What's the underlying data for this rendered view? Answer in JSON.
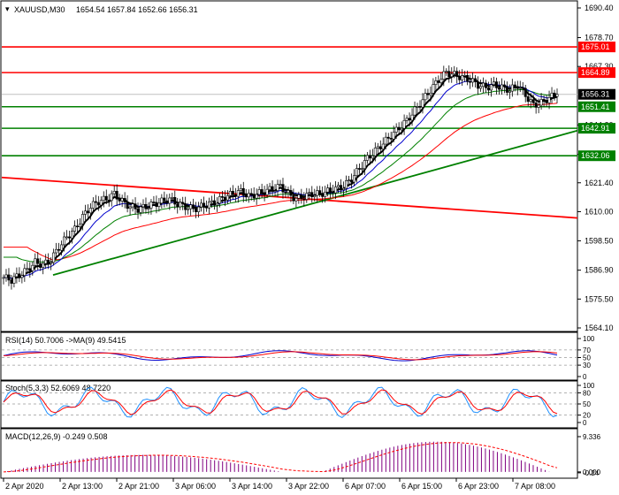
{
  "header": {
    "symbol": "XAUUSD,M30",
    "ohlc": "1654.54 1657.84 1652.66 1656.31"
  },
  "price_axis": {
    "ticks": [
      "1690.40",
      "1678.70",
      "1667.30",
      "1644.20",
      "1632.60",
      "1621.40",
      "1610.00",
      "1598.50",
      "1586.90",
      "1575.50",
      "1564.10"
    ]
  },
  "levels": [
    {
      "label": "1675.01",
      "value": 1675.01,
      "color": "#ff0000"
    },
    {
      "label": "1664.89",
      "value": 1664.89,
      "color": "#ff0000"
    },
    {
      "label": "1651.41",
      "value": 1651.41,
      "color": "#008000"
    },
    {
      "label": "1642.91",
      "value": 1642.91,
      "color": "#008000"
    },
    {
      "label": "1632.06",
      "value": 1632.06,
      "color": "#008000"
    }
  ],
  "current_price": {
    "label": "1656.31",
    "value": 1656.31
  },
  "time_axis": {
    "labels": [
      "2 Apr 2020",
      "2 Apr 13:00",
      "2 Apr 21:00",
      "3 Apr 06:00",
      "3 Apr 14:00",
      "3 Apr 22:00",
      "6 Apr 07:00",
      "6 Apr 15:00",
      "6 Apr 23:00",
      "7 Apr 08:00"
    ]
  },
  "rsi": {
    "title": "RSI(14) 50.7006  ->MA(9) 49.5415",
    "ticks": [
      "100",
      "70",
      "50",
      "30",
      "0"
    ]
  },
  "stoch": {
    "title": "Stoch(5,3,3) 52.6069 48.7220",
    "ticks": [
      "100",
      "80",
      "50",
      "20",
      "0"
    ]
  },
  "macd": {
    "title": "MACD(12,26,9) -0.249 0.508",
    "ticks": [
      "9.336",
      "0.000",
      "-0.24"
    ]
  },
  "colors": {
    "up": "#008000",
    "down": "#ff0000",
    "candle": "#000000",
    "ma_fast": "#000000",
    "ma_mid": "#0000cd",
    "ma_slow": "#008000",
    "ma_long": "#ff0000",
    "rsi": "#0000cd",
    "rsi_ma": "#ff0000",
    "stoch_k": "#1e90ff",
    "stoch_d": "#ff0000",
    "macd_hist": "#800080",
    "macd_signal": "#ff0000"
  },
  "chart_data": {
    "type": "line",
    "instrument": "XAUUSD",
    "timeframe": "M30",
    "ylim": [
      1564.1,
      1690.4
    ],
    "x_labels": [
      "2 Apr 2020",
      "2 Apr 13:00",
      "2 Apr 21:00",
      "3 Apr 06:00",
      "3 Apr 14:00",
      "3 Apr 22:00",
      "6 Apr 07:00",
      "6 Apr 15:00",
      "6 Apr 23:00",
      "7 Apr 08:00"
    ],
    "close_series": {
      "name": "Close",
      "values": [
        1584,
        1583,
        1585,
        1587,
        1590,
        1589,
        1591,
        1596,
        1600,
        1603,
        1608,
        1612,
        1614,
        1615,
        1617,
        1614,
        1612,
        1611,
        1612,
        1613,
        1614,
        1615,
        1613,
        1612,
        1611,
        1612,
        1613,
        1614,
        1616,
        1617,
        1618,
        1616,
        1617,
        1618,
        1619,
        1620,
        1617,
        1615,
        1616,
        1617,
        1617,
        1618,
        1619,
        1620,
        1623,
        1627,
        1631,
        1634,
        1637,
        1640,
        1643,
        1646,
        1650,
        1654,
        1658,
        1662,
        1665,
        1664,
        1663,
        1662,
        1660,
        1659,
        1660,
        1659,
        1658,
        1660,
        1656,
        1652,
        1653,
        1655,
        1656.31
      ]
    },
    "support_resistance": [
      1675.01,
      1664.89,
      1651.41,
      1642.91,
      1632.06
    ],
    "trendlines": [
      {
        "color": "red",
        "from_value": 1623.5,
        "to_value": 1607.5
      },
      {
        "color": "green",
        "from_value": 1585.0,
        "to_value": 1642.0
      }
    ],
    "legend": "none",
    "grid": false
  }
}
